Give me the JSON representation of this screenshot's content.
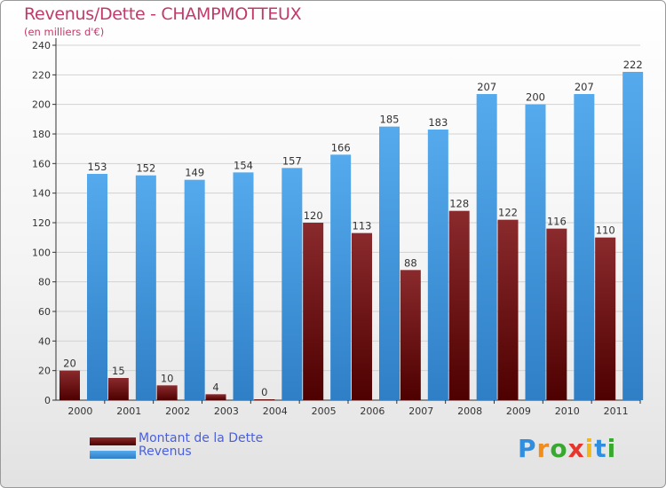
{
  "header": {
    "title": "Revenus/Dette - CHAMPMOTTEUX",
    "unit": "(en milliers d'€)"
  },
  "legend": [
    {
      "label": "Montant de la Dette",
      "color": "#6b0f12"
    },
    {
      "label": "Revenus",
      "color": "#3f99e0"
    }
  ],
  "logo": {
    "text": "Proxiti",
    "letters": [
      {
        "ch": "P",
        "color": "#2f8ee0"
      },
      {
        "ch": "r",
        "color": "#f28c1a"
      },
      {
        "ch": "o",
        "color": "#39a82f"
      },
      {
        "ch": "x",
        "color": "#e8352c"
      },
      {
        "ch": "i",
        "color": "#f0b81a"
      },
      {
        "ch": "t",
        "color": "#2f8ee0"
      },
      {
        "ch": "i",
        "color": "#39a82f"
      }
    ]
  },
  "chart_data": {
    "type": "bar",
    "categories": [
      "2000",
      "2001",
      "2002",
      "2003",
      "2004",
      "2005",
      "2006",
      "2007",
      "2008",
      "2009",
      "2010",
      "2011"
    ],
    "series": [
      {
        "name": "Montant de la Dette",
        "color": "#6b0f12",
        "values": [
          20,
          15,
          10,
          4,
          0,
          120,
          113,
          88,
          128,
          122,
          116,
          110
        ]
      },
      {
        "name": "Revenus",
        "color": "#3f99e0",
        "values": [
          153,
          152,
          149,
          154,
          157,
          166,
          185,
          183,
          207,
          200,
          207,
          222
        ]
      }
    ],
    "yticks": [
      0,
      20,
      40,
      60,
      80,
      100,
      120,
      140,
      160,
      180,
      200,
      220,
      240
    ],
    "ylim": [
      0,
      240
    ],
    "grid": true,
    "legend_position": "bottom-left"
  }
}
